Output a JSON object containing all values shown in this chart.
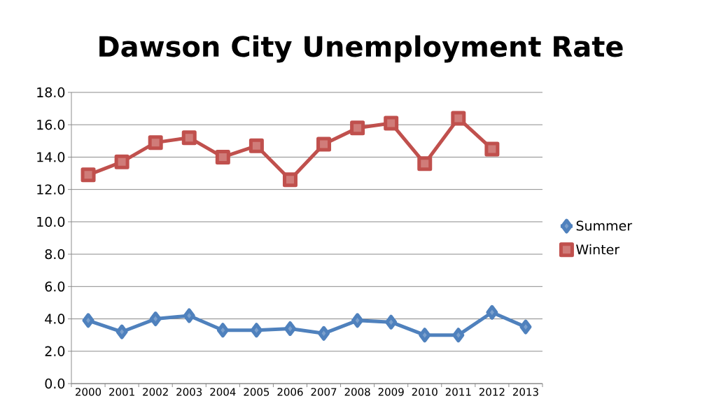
{
  "chart_data": {
    "type": "line",
    "title": "Dawson City Unemployment Rate",
    "categories": [
      "2000",
      "2001",
      "2002",
      "2003",
      "2004",
      "2005",
      "2006",
      "2007",
      "2008",
      "2009",
      "2010",
      "2011",
      "2012",
      "2013"
    ],
    "series": [
      {
        "name": "Summer",
        "color": "#4f81bd",
        "marker": "diamond",
        "values": [
          3.9,
          3.2,
          4.0,
          4.2,
          3.3,
          3.3,
          3.4,
          3.1,
          3.9,
          3.8,
          3.0,
          3.0,
          4.4,
          3.5
        ]
      },
      {
        "name": "Winter",
        "color": "#c0504d",
        "marker": "square",
        "values": [
          12.9,
          13.7,
          14.9,
          15.2,
          14.0,
          14.7,
          12.6,
          14.8,
          15.8,
          16.1,
          13.6,
          16.4,
          14.5,
          null
        ]
      }
    ],
    "ylim": [
      0,
      18
    ],
    "yticks": [
      {
        "value": 0,
        "label": "0.0"
      },
      {
        "value": 2,
        "label": "2.0"
      },
      {
        "value": 4,
        "label": "4.0"
      },
      {
        "value": 6,
        "label": "6.0"
      },
      {
        "value": 8,
        "label": "8.0"
      },
      {
        "value": 10,
        "label": "10.0"
      },
      {
        "value": 12,
        "label": "12.0"
      },
      {
        "value": 14,
        "label": "14.0"
      },
      {
        "value": 16,
        "label": "16.0"
      },
      {
        "value": 18,
        "label": "18.0"
      }
    ],
    "grid": "y",
    "legend": "right",
    "line_style": "solid"
  }
}
